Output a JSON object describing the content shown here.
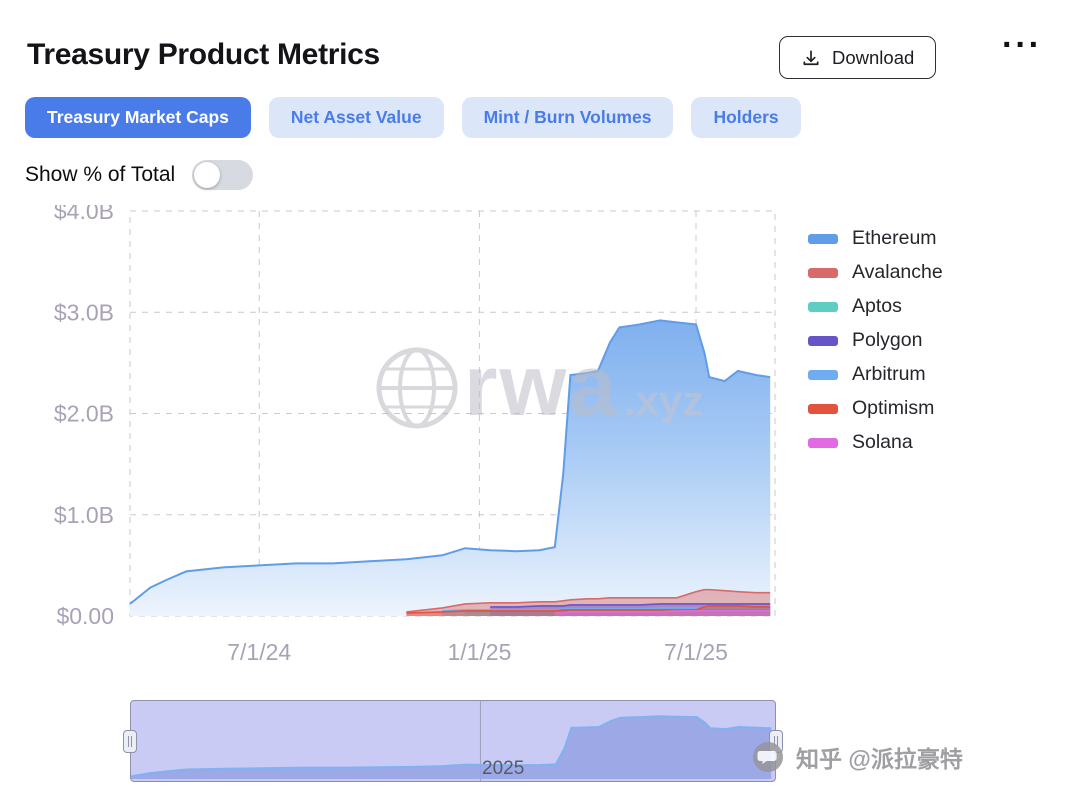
{
  "header": {
    "title": "Treasury Product Metrics",
    "download_label": "Download",
    "more_label": "···"
  },
  "tabs": [
    {
      "label": "Treasury Market Caps",
      "active": true
    },
    {
      "label": "Net Asset Value",
      "active": false
    },
    {
      "label": "Mint / Burn Volumes",
      "active": false
    },
    {
      "label": "Holders",
      "active": false
    }
  ],
  "controls": {
    "toggle_label": "Show % of Total",
    "toggle_state": "off"
  },
  "watermark": {
    "brand": "rwa",
    "suffix": ".xyz"
  },
  "footer_watermark": {
    "icon": "speech-bubble",
    "text": "知乎 @派拉豪特"
  },
  "navigator": {
    "year_label": "2025",
    "divider_date": "2025-01-01",
    "fill": "#98A4E6",
    "line": "#7FB2F2",
    "background": "#C9CBF4"
  },
  "colors": {
    "accent_blue": "#4A7CE9",
    "tab_inactive_bg": "#DBE7F9",
    "axis_label": "#A9A2B6",
    "grid": "#C9C9D2"
  },
  "chart_data": {
    "type": "area",
    "title": "Treasury Market Caps",
    "unit": "USD billions",
    "ylim": [
      0,
      4.0
    ],
    "y_ticks": [
      "$0.00",
      "$1.0B",
      "$2.0B",
      "$3.0B",
      "$4.0B"
    ],
    "y_tick_values": [
      0,
      1,
      2,
      3,
      4
    ],
    "x_ticks": [
      "7/1/24",
      "1/1/25",
      "7/1/25"
    ],
    "x_tick_positions": [
      "2024-07-01",
      "2025-01-01",
      "2025-07-01"
    ],
    "x_domain": [
      "2024-03-15",
      "2025-09-05"
    ],
    "grid": "dashed",
    "legend_position": "right",
    "x": [
      "2024-03-15",
      "2024-04-01",
      "2024-04-15",
      "2024-05-01",
      "2024-06-01",
      "2024-07-01",
      "2024-08-01",
      "2024-09-01",
      "2024-10-01",
      "2024-11-01",
      "2024-12-01",
      "2024-12-20",
      "2025-01-10",
      "2025-02-01",
      "2025-02-20",
      "2025-03-05",
      "2025-03-12",
      "2025-03-18",
      "2025-04-01",
      "2025-04-10",
      "2025-04-20",
      "2025-04-28",
      "2025-05-15",
      "2025-06-01",
      "2025-06-15",
      "2025-07-01",
      "2025-07-08",
      "2025-07-12",
      "2025-07-25",
      "2025-08-05",
      "2025-08-20",
      "2025-09-01"
    ],
    "series": [
      {
        "name": "Ethereum",
        "color": "#5F9DE8",
        "gradient_top": "#7FB0EE",
        "gradient_mid": "#A9CBF5",
        "gradient_bottom": "#EDF4FD",
        "values": [
          0.12,
          0.28,
          0.36,
          0.44,
          0.48,
          0.5,
          0.52,
          0.52,
          0.54,
          0.56,
          0.6,
          0.67,
          0.65,
          0.64,
          0.65,
          0.68,
          1.4,
          2.38,
          2.4,
          2.42,
          2.7,
          2.85,
          2.88,
          2.92,
          2.9,
          2.88,
          2.6,
          2.36,
          2.32,
          2.42,
          2.38,
          2.36
        ]
      },
      {
        "name": "Avalanche",
        "color": "#D96A6A",
        "values": [
          null,
          null,
          null,
          null,
          null,
          null,
          null,
          null,
          null,
          0.04,
          0.08,
          0.12,
          0.13,
          0.13,
          0.14,
          0.14,
          0.15,
          0.16,
          0.17,
          0.17,
          0.18,
          0.18,
          0.18,
          0.18,
          0.18,
          0.24,
          0.26,
          0.26,
          0.25,
          0.24,
          0.23,
          0.23
        ]
      },
      {
        "name": "Aptos",
        "color": "#5FCEC2",
        "values": [
          null,
          null,
          null,
          null,
          null,
          null,
          null,
          null,
          null,
          null,
          null,
          0.03,
          0.04,
          0.04,
          0.05,
          0.05,
          0.05,
          0.06,
          0.06,
          0.06,
          0.06,
          0.06,
          0.06,
          0.07,
          0.07,
          0.07,
          0.07,
          0.07,
          0.07,
          0.07,
          0.07,
          0.07
        ]
      },
      {
        "name": "Polygon",
        "color": "#6654C8",
        "values": [
          null,
          null,
          null,
          null,
          null,
          null,
          null,
          null,
          null,
          null,
          null,
          null,
          0.09,
          0.09,
          0.1,
          0.1,
          0.1,
          0.11,
          0.11,
          0.11,
          0.11,
          0.11,
          0.11,
          0.12,
          0.12,
          0.12,
          0.12,
          0.12,
          0.12,
          0.12,
          0.12,
          0.12
        ]
      },
      {
        "name": "Arbitrum",
        "color": "#6FADF0",
        "values": [
          null,
          null,
          null,
          null,
          null,
          null,
          null,
          null,
          null,
          null,
          0.05,
          0.06,
          0.06,
          0.06,
          0.06,
          0.06,
          0.07,
          0.07,
          0.07,
          0.07,
          0.07,
          0.07,
          0.07,
          0.08,
          0.08,
          0.08,
          0.08,
          0.08,
          0.08,
          0.08,
          0.08,
          0.08
        ]
      },
      {
        "name": "Optimism",
        "color": "#E2523D",
        "values": [
          null,
          null,
          null,
          null,
          null,
          null,
          null,
          null,
          null,
          0.03,
          0.04,
          0.05,
          0.05,
          0.05,
          0.05,
          0.05,
          0.06,
          0.06,
          0.06,
          0.06,
          0.06,
          0.06,
          0.06,
          0.06,
          0.06,
          0.06,
          0.09,
          0.1,
          0.1,
          0.1,
          0.09,
          0.09
        ]
      },
      {
        "name": "Solana",
        "color": "#E26BE2",
        "values": [
          null,
          null,
          null,
          null,
          null,
          null,
          null,
          null,
          null,
          null,
          null,
          null,
          null,
          null,
          null,
          0.03,
          0.03,
          0.04,
          0.04,
          0.04,
          0.04,
          0.04,
          0.04,
          0.04,
          0.05,
          0.05,
          0.05,
          0.05,
          0.05,
          0.05,
          0.05,
          0.05
        ]
      }
    ]
  }
}
